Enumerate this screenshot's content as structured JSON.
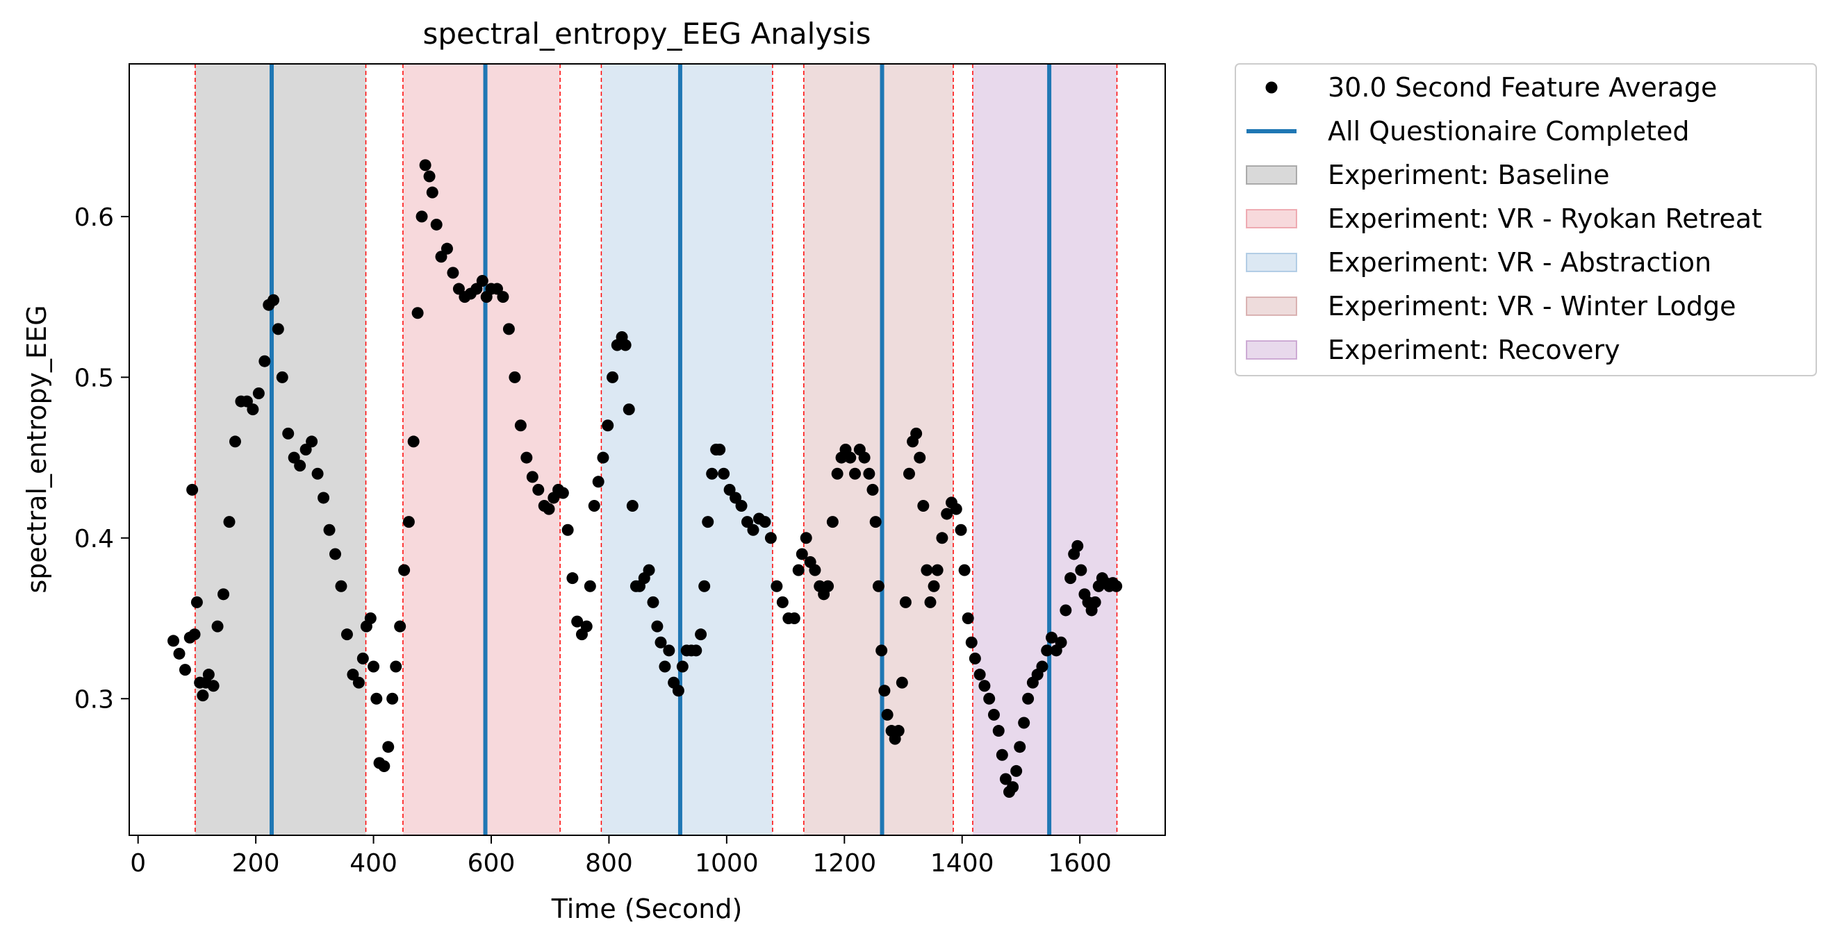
{
  "chart_data": {
    "type": "scatter",
    "title": "spectral_entropy_EEG Analysis",
    "xlabel": "Time (Second)",
    "ylabel": "spectral_entropy_EEG",
    "xlim": [
      -15,
      1745
    ],
    "ylim": [
      0.215,
      0.695
    ],
    "xticks": [
      0,
      200,
      400,
      600,
      800,
      1000,
      1200,
      1400,
      1600
    ],
    "yticks": [
      0.3,
      0.4,
      0.5,
      0.6
    ],
    "grid": false,
    "legend_placement": "outside-top-right",
    "legend": [
      {
        "label": "30.0 Second Feature Average",
        "kind": "marker",
        "color": "#000000"
      },
      {
        "label": "All Questionaire Completed",
        "kind": "line",
        "color": "#1f77b4"
      },
      {
        "label": "Experiment: Baseline",
        "kind": "patch",
        "color": "#808080"
      },
      {
        "label": "Experiment: VR - Ryokan Retreat",
        "kind": "patch",
        "color": "#e6808c"
      },
      {
        "label": "Experiment: VR - Abstraction",
        "kind": "patch",
        "color": "#8cb4d8"
      },
      {
        "label": "Experiment: VR - Winter Lodge",
        "kind": "patch",
        "color": "#c88c8c"
      },
      {
        "label": "Experiment: Recovery",
        "kind": "patch",
        "color": "#b480c0"
      }
    ],
    "regions": [
      {
        "name": "Experiment: Baseline",
        "start": 97,
        "end": 387,
        "color": "#808080"
      },
      {
        "name": "Experiment: VR - Ryokan Retreat",
        "start": 450,
        "end": 717,
        "color": "#e6808c"
      },
      {
        "name": "Experiment: VR - Abstraction",
        "start": 787,
        "end": 1078,
        "color": "#8cb4d8"
      },
      {
        "name": "Experiment: VR - Winter Lodge",
        "start": 1131,
        "end": 1385,
        "color": "#c88c8c"
      },
      {
        "name": "Experiment: Recovery",
        "start": 1418,
        "end": 1663,
        "color": "#b480c0"
      }
    ],
    "questionnaire_completed_x": [
      227,
      590,
      921,
      1264,
      1548
    ],
    "series": [
      {
        "name": "30.0 Second Feature Average",
        "color": "#000000",
        "points": [
          [
            60,
            0.336
          ],
          [
            70,
            0.328
          ],
          [
            80,
            0.318
          ],
          [
            88,
            0.338
          ],
          [
            92,
            0.43
          ],
          [
            96,
            0.34
          ],
          [
            100,
            0.36
          ],
          [
            105,
            0.31
          ],
          [
            110,
            0.302
          ],
          [
            115,
            0.31
          ],
          [
            120,
            0.315
          ],
          [
            128,
            0.308
          ],
          [
            135,
            0.345
          ],
          [
            145,
            0.365
          ],
          [
            155,
            0.41
          ],
          [
            165,
            0.46
          ],
          [
            175,
            0.485
          ],
          [
            185,
            0.485
          ],
          [
            195,
            0.48
          ],
          [
            205,
            0.49
          ],
          [
            215,
            0.51
          ],
          [
            222,
            0.545
          ],
          [
            230,
            0.548
          ],
          [
            238,
            0.53
          ],
          [
            245,
            0.5
          ],
          [
            255,
            0.465
          ],
          [
            265,
            0.45
          ],
          [
            275,
            0.445
          ],
          [
            285,
            0.455
          ],
          [
            295,
            0.46
          ],
          [
            305,
            0.44
          ],
          [
            315,
            0.425
          ],
          [
            325,
            0.405
          ],
          [
            335,
            0.39
          ],
          [
            345,
            0.37
          ],
          [
            355,
            0.34
          ],
          [
            365,
            0.315
          ],
          [
            375,
            0.31
          ],
          [
            382,
            0.325
          ],
          [
            388,
            0.345
          ],
          [
            395,
            0.35
          ],
          [
            400,
            0.32
          ],
          [
            405,
            0.3
          ],
          [
            410,
            0.26
          ],
          [
            418,
            0.258
          ],
          [
            425,
            0.27
          ],
          [
            432,
            0.3
          ],
          [
            438,
            0.32
          ],
          [
            445,
            0.345
          ],
          [
            452,
            0.38
          ],
          [
            460,
            0.41
          ],
          [
            468,
            0.46
          ],
          [
            475,
            0.54
          ],
          [
            482,
            0.6
          ],
          [
            488,
            0.632
          ],
          [
            495,
            0.625
          ],
          [
            500,
            0.615
          ],
          [
            507,
            0.595
          ],
          [
            515,
            0.575
          ],
          [
            525,
            0.58
          ],
          [
            535,
            0.565
          ],
          [
            545,
            0.555
          ],
          [
            555,
            0.55
          ],
          [
            565,
            0.552
          ],
          [
            575,
            0.555
          ],
          [
            585,
            0.56
          ],
          [
            592,
            0.55
          ],
          [
            600,
            0.555
          ],
          [
            610,
            0.555
          ],
          [
            620,
            0.55
          ],
          [
            630,
            0.53
          ],
          [
            640,
            0.5
          ],
          [
            650,
            0.47
          ],
          [
            660,
            0.45
          ],
          [
            670,
            0.438
          ],
          [
            680,
            0.43
          ],
          [
            690,
            0.42
          ],
          [
            698,
            0.418
          ],
          [
            706,
            0.425
          ],
          [
            714,
            0.43
          ],
          [
            722,
            0.428
          ],
          [
            730,
            0.405
          ],
          [
            738,
            0.375
          ],
          [
            746,
            0.348
          ],
          [
            754,
            0.34
          ],
          [
            762,
            0.345
          ],
          [
            768,
            0.37
          ],
          [
            775,
            0.42
          ],
          [
            782,
            0.435
          ],
          [
            790,
            0.45
          ],
          [
            798,
            0.47
          ],
          [
            806,
            0.5
          ],
          [
            814,
            0.52
          ],
          [
            822,
            0.525
          ],
          [
            828,
            0.52
          ],
          [
            834,
            0.48
          ],
          [
            840,
            0.42
          ],
          [
            846,
            0.37
          ],
          [
            852,
            0.37
          ],
          [
            860,
            0.375
          ],
          [
            868,
            0.38
          ],
          [
            875,
            0.36
          ],
          [
            882,
            0.345
          ],
          [
            888,
            0.335
          ],
          [
            895,
            0.32
          ],
          [
            902,
            0.33
          ],
          [
            910,
            0.31
          ],
          [
            918,
            0.305
          ],
          [
            925,
            0.32
          ],
          [
            932,
            0.33
          ],
          [
            940,
            0.33
          ],
          [
            948,
            0.33
          ],
          [
            956,
            0.34
          ],
          [
            962,
            0.37
          ],
          [
            968,
            0.41
          ],
          [
            975,
            0.44
          ],
          [
            982,
            0.455
          ],
          [
            988,
            0.455
          ],
          [
            995,
            0.44
          ],
          [
            1005,
            0.43
          ],
          [
            1015,
            0.425
          ],
          [
            1025,
            0.42
          ],
          [
            1035,
            0.41
          ],
          [
            1045,
            0.405
          ],
          [
            1055,
            0.412
          ],
          [
            1065,
            0.41
          ],
          [
            1075,
            0.4
          ],
          [
            1085,
            0.37
          ],
          [
            1095,
            0.36
          ],
          [
            1105,
            0.35
          ],
          [
            1115,
            0.35
          ],
          [
            1122,
            0.38
          ],
          [
            1128,
            0.39
          ],
          [
            1135,
            0.4
          ],
          [
            1142,
            0.385
          ],
          [
            1150,
            0.38
          ],
          [
            1158,
            0.37
          ],
          [
            1165,
            0.365
          ],
          [
            1172,
            0.37
          ],
          [
            1180,
            0.41
          ],
          [
            1188,
            0.44
          ],
          [
            1195,
            0.45
          ],
          [
            1202,
            0.455
          ],
          [
            1210,
            0.45
          ],
          [
            1218,
            0.44
          ],
          [
            1226,
            0.455
          ],
          [
            1234,
            0.45
          ],
          [
            1242,
            0.44
          ],
          [
            1248,
            0.43
          ],
          [
            1253,
            0.41
          ],
          [
            1258,
            0.37
          ],
          [
            1263,
            0.33
          ],
          [
            1268,
            0.305
          ],
          [
            1273,
            0.29
          ],
          [
            1280,
            0.28
          ],
          [
            1286,
            0.275
          ],
          [
            1292,
            0.28
          ],
          [
            1298,
            0.31
          ],
          [
            1304,
            0.36
          ],
          [
            1310,
            0.44
          ],
          [
            1316,
            0.46
          ],
          [
            1322,
            0.465
          ],
          [
            1328,
            0.45
          ],
          [
            1334,
            0.42
          ],
          [
            1340,
            0.38
          ],
          [
            1346,
            0.36
          ],
          [
            1352,
            0.37
          ],
          [
            1358,
            0.38
          ],
          [
            1366,
            0.4
          ],
          [
            1374,
            0.415
          ],
          [
            1382,
            0.422
          ],
          [
            1390,
            0.418
          ],
          [
            1398,
            0.405
          ],
          [
            1404,
            0.38
          ],
          [
            1410,
            0.35
          ],
          [
            1416,
            0.335
          ],
          [
            1422,
            0.325
          ],
          [
            1430,
            0.315
          ],
          [
            1438,
            0.308
          ],
          [
            1446,
            0.3
          ],
          [
            1454,
            0.29
          ],
          [
            1462,
            0.28
          ],
          [
            1468,
            0.265
          ],
          [
            1474,
            0.25
          ],
          [
            1480,
            0.242
          ],
          [
            1486,
            0.245
          ],
          [
            1492,
            0.255
          ],
          [
            1498,
            0.27
          ],
          [
            1505,
            0.285
          ],
          [
            1512,
            0.3
          ],
          [
            1520,
            0.31
          ],
          [
            1528,
            0.315
          ],
          [
            1536,
            0.32
          ],
          [
            1544,
            0.33
          ],
          [
            1552,
            0.338
          ],
          [
            1560,
            0.33
          ],
          [
            1568,
            0.335
          ],
          [
            1576,
            0.355
          ],
          [
            1584,
            0.375
          ],
          [
            1590,
            0.39
          ],
          [
            1596,
            0.395
          ],
          [
            1602,
            0.38
          ],
          [
            1608,
            0.365
          ],
          [
            1614,
            0.36
          ],
          [
            1620,
            0.355
          ],
          [
            1626,
            0.36
          ],
          [
            1632,
            0.37
          ],
          [
            1638,
            0.375
          ],
          [
            1644,
            0.372
          ],
          [
            1650,
            0.37
          ],
          [
            1656,
            0.372
          ],
          [
            1662,
            0.37
          ]
        ]
      }
    ]
  }
}
